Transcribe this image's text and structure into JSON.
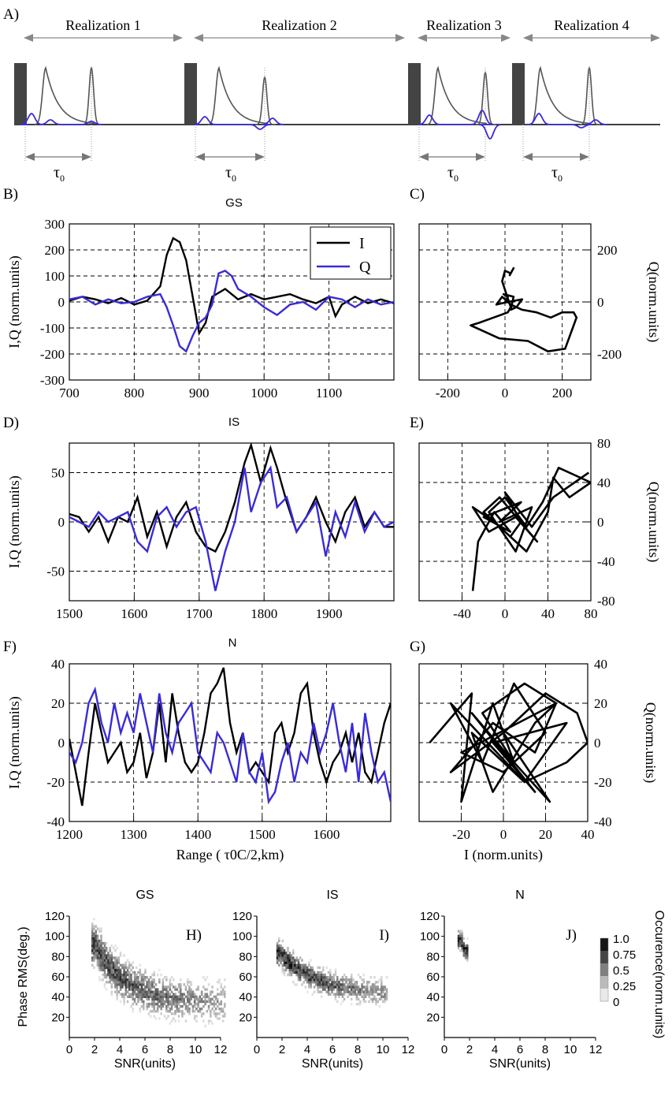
{
  "colors": {
    "I": "#000000",
    "Q": "#3a2bd6",
    "pulse": "#555555",
    "block": "#444444"
  },
  "panel_labels": {
    "A": "A)",
    "B": "B)",
    "C": "C)",
    "D": "D)",
    "E": "E)",
    "F": "F)",
    "G": "G)",
    "H": "H)",
    "I": "I)",
    "J": "J)"
  },
  "schematic": {
    "realizations": [
      "Realization 1",
      "Realization 2",
      "Realization 3",
      "Realization 4"
    ],
    "tau_label": "τ",
    "tau_sub": "0"
  },
  "chart_data": [
    {
      "id": "B",
      "type": "line",
      "title": "GS",
      "xlabel": "",
      "ylabel": "I,Q (norm.units)",
      "xlim": [
        700,
        1200
      ],
      "ylim": [
        -300,
        300
      ],
      "xticks": [
        "700",
        "800",
        "900",
        "1000",
        "1100"
      ],
      "yticks": [
        "-300",
        "-200",
        "-100",
        "0",
        "100",
        "200",
        "300"
      ],
      "legend": [
        "I",
        "Q"
      ],
      "legend_position": "top-right",
      "series": [
        {
          "name": "I",
          "x": [
            700,
            720,
            740,
            760,
            780,
            800,
            820,
            840,
            850,
            860,
            870,
            880,
            890,
            900,
            910,
            920,
            940,
            960,
            980,
            1000,
            1020,
            1040,
            1060,
            1080,
            1100,
            1110,
            1120,
            1140,
            1160,
            1180,
            1200
          ],
          "values": [
            5,
            20,
            10,
            -5,
            15,
            -10,
            5,
            60,
            180,
            245,
            230,
            160,
            20,
            -120,
            -80,
            20,
            50,
            10,
            30,
            10,
            20,
            30,
            10,
            -5,
            20,
            -55,
            -10,
            20,
            -5,
            10,
            -5
          ]
        },
        {
          "name": "Q",
          "x": [
            700,
            720,
            740,
            760,
            780,
            800,
            820,
            840,
            850,
            860,
            870,
            880,
            890,
            900,
            910,
            920,
            930,
            940,
            950,
            960,
            980,
            1000,
            1020,
            1040,
            1060,
            1080,
            1100,
            1120,
            1140,
            1160,
            1180,
            1200
          ],
          "values": [
            10,
            20,
            -10,
            10,
            -5,
            0,
            20,
            30,
            -20,
            -90,
            -170,
            -190,
            -130,
            -80,
            -60,
            -10,
            110,
            120,
            100,
            50,
            20,
            -20,
            -50,
            -10,
            0,
            -30,
            20,
            10,
            -20,
            10,
            -10,
            0
          ]
        }
      ]
    },
    {
      "id": "C",
      "type": "scatter",
      "title": "",
      "xlabel": "",
      "ylabel": "Q(norm.units)",
      "xlim": [
        -300,
        300
      ],
      "ylim": [
        -300,
        300
      ],
      "xticks": [
        "-200",
        "0",
        "200"
      ],
      "yticks": [
        "-200",
        "0",
        "200"
      ],
      "x": [
        0,
        10,
        -5,
        30,
        20,
        40,
        60,
        10,
        -30,
        -10,
        20,
        60,
        110,
        160,
        200,
        240,
        250,
        210,
        150,
        80,
        -20,
        -60,
        -120,
        -90,
        -40,
        10,
        20,
        5,
        -10,
        0,
        20,
        30,
        15
      ],
      "values": [
        0,
        20,
        30,
        20,
        -30,
        -20,
        10,
        0,
        -10,
        20,
        -10,
        -30,
        -40,
        -60,
        -40,
        -40,
        -60,
        -180,
        -190,
        -150,
        -140,
        -120,
        -90,
        -80,
        -60,
        -40,
        -20,
        30,
        80,
        120,
        110,
        130,
        100
      ]
    },
    {
      "id": "D",
      "type": "line",
      "title": "IS",
      "xlabel": "",
      "ylabel": "I,Q (norm.units)",
      "xlim": [
        1500,
        2000
      ],
      "ylim": [
        -80,
        80
      ],
      "xticks": [
        "1500",
        "1600",
        "1700",
        "1800",
        "1900"
      ],
      "yticks": [
        "-50",
        "0",
        "50"
      ],
      "legend": [],
      "legend_position": "",
      "series": [
        {
          "name": "I",
          "x": [
            1500,
            1515,
            1530,
            1545,
            1560,
            1575,
            1590,
            1605,
            1620,
            1635,
            1650,
            1665,
            1680,
            1695,
            1710,
            1725,
            1740,
            1755,
            1770,
            1780,
            1795,
            1810,
            1820,
            1835,
            1850,
            1865,
            1880,
            1895,
            1910,
            1925,
            1940,
            1955,
            1970,
            1985,
            2000
          ],
          "values": [
            8,
            5,
            -10,
            5,
            -20,
            5,
            0,
            25,
            -15,
            10,
            -25,
            5,
            20,
            -10,
            -25,
            -30,
            -10,
            20,
            60,
            78,
            40,
            75,
            55,
            20,
            -10,
            5,
            25,
            0,
            -20,
            10,
            25,
            -5,
            10,
            -5,
            -5
          ]
        },
        {
          "name": "Q",
          "x": [
            1500,
            1515,
            1530,
            1545,
            1560,
            1575,
            1590,
            1605,
            1620,
            1635,
            1650,
            1665,
            1680,
            1695,
            1710,
            1725,
            1740,
            1755,
            1770,
            1780,
            1795,
            1810,
            1820,
            1835,
            1850,
            1865,
            1880,
            1895,
            1910,
            1925,
            1940,
            1955,
            1970,
            1985,
            2000
          ],
          "values": [
            5,
            0,
            -5,
            10,
            0,
            5,
            10,
            -20,
            -30,
            5,
            15,
            -5,
            10,
            15,
            -20,
            -70,
            -30,
            0,
            55,
            10,
            40,
            55,
            15,
            25,
            -10,
            5,
            20,
            -35,
            10,
            -15,
            20,
            -10,
            10,
            -5,
            0
          ]
        }
      ]
    },
    {
      "id": "E",
      "type": "scatter",
      "title": "",
      "xlabel": "",
      "ylabel": "Q(norm.units)",
      "xlim": [
        -80,
        80
      ],
      "ylim": [
        -80,
        80
      ],
      "xticks": [
        "-40",
        "0",
        "40",
        "80"
      ],
      "yticks": [
        "80",
        "40",
        "0",
        "-40",
        "-80"
      ],
      "x": [
        -30,
        -25,
        -10,
        5,
        -20,
        15,
        -5,
        25,
        10,
        -15,
        0,
        20,
        35,
        50,
        80,
        60,
        45,
        40,
        20,
        -10,
        -30,
        -15,
        10,
        30,
        -5,
        -20,
        5,
        15,
        0,
        25,
        35,
        45,
        78
      ],
      "values": [
        -70,
        -20,
        10,
        -10,
        5,
        20,
        0,
        15,
        -30,
        10,
        25,
        -5,
        20,
        55,
        40,
        25,
        45,
        10,
        -30,
        0,
        15,
        -10,
        5,
        -20,
        25,
        10,
        -15,
        0,
        30,
        -5,
        10,
        25,
        50
      ]
    },
    {
      "id": "F",
      "type": "line",
      "title": "N",
      "xlabel": "Range ( τ0C/2,km)",
      "ylabel": "I,Q (norm.units)",
      "xlim": [
        1200,
        1700
      ],
      "ylim": [
        -40,
        40
      ],
      "xticks": [
        "1200",
        "1300",
        "1400",
        "1500",
        "1600"
      ],
      "yticks": [
        "-40",
        "-20",
        "0",
        "20",
        "40"
      ],
      "legend": [],
      "legend_position": "",
      "series": [
        {
          "name": "I",
          "x": [
            1200,
            1210,
            1220,
            1230,
            1240,
            1250,
            1260,
            1270,
            1280,
            1290,
            1300,
            1310,
            1320,
            1330,
            1340,
            1350,
            1360,
            1370,
            1380,
            1390,
            1400,
            1410,
            1420,
            1430,
            1440,
            1450,
            1460,
            1470,
            1480,
            1490,
            1500,
            1510,
            1520,
            1530,
            1540,
            1550,
            1560,
            1570,
            1580,
            1590,
            1600,
            1610,
            1620,
            1630,
            1640,
            1650,
            1660,
            1670,
            1680,
            1690,
            1700
          ],
          "values": [
            2,
            -15,
            -32,
            -5,
            20,
            5,
            -10,
            -5,
            0,
            -15,
            -10,
            5,
            -18,
            -5,
            20,
            -10,
            25,
            5,
            -10,
            -15,
            -10,
            5,
            25,
            30,
            38,
            10,
            -5,
            5,
            -15,
            -10,
            -15,
            -20,
            5,
            10,
            -5,
            5,
            25,
            30,
            5,
            -10,
            -20,
            -10,
            -5,
            5,
            -10,
            5,
            -15,
            -20,
            -5,
            10,
            20
          ]
        },
        {
          "name": "Q",
          "x": [
            1200,
            1210,
            1220,
            1230,
            1240,
            1250,
            1260,
            1270,
            1280,
            1290,
            1300,
            1310,
            1320,
            1330,
            1340,
            1350,
            1360,
            1370,
            1380,
            1390,
            1400,
            1410,
            1420,
            1430,
            1440,
            1450,
            1460,
            1470,
            1480,
            1490,
            1500,
            1510,
            1520,
            1530,
            1540,
            1550,
            1560,
            1570,
            1580,
            1590,
            1600,
            1610,
            1620,
            1630,
            1640,
            1650,
            1660,
            1670,
            1680,
            1690,
            1700
          ],
          "values": [
            -5,
            -10,
            0,
            20,
            27,
            10,
            0,
            20,
            5,
            15,
            5,
            25,
            10,
            -5,
            25,
            5,
            -5,
            10,
            15,
            20,
            -5,
            -10,
            -15,
            5,
            0,
            -10,
            -20,
            5,
            -15,
            -20,
            -5,
            -30,
            -25,
            -10,
            0,
            -20,
            -5,
            -10,
            10,
            -5,
            5,
            20,
            0,
            -15,
            10,
            -20,
            15,
            -5,
            -20,
            -15,
            -30
          ]
        }
      ]
    },
    {
      "id": "G",
      "type": "scatter",
      "title": "",
      "xlabel": "I (norm.units)",
      "ylabel": "Q(norm.units)",
      "xlim": [
        -40,
        40
      ],
      "ylim": [
        -40,
        40
      ],
      "xticks": [
        "-20",
        "0",
        "20",
        "40"
      ],
      "yticks": [
        "40",
        "20",
        "0",
        "-20",
        "-40"
      ],
      "x": [
        -35,
        -15,
        -20,
        -5,
        5,
        -10,
        10,
        25,
        15,
        -5,
        -25,
        0,
        20,
        35,
        40,
        30,
        10,
        -15,
        -5,
        15,
        25,
        -20,
        0,
        20,
        5,
        -10,
        -25,
        10,
        30,
        -5,
        15,
        -15,
        5,
        22,
        0
      ],
      "values": [
        0,
        25,
        -30,
        20,
        -10,
        15,
        30,
        20,
        -5,
        10,
        -15,
        5,
        25,
        15,
        0,
        -10,
        -20,
        5,
        -25,
        10,
        20,
        -5,
        -15,
        5,
        30,
        -10,
        20,
        -20,
        10,
        0,
        -25,
        15,
        -10,
        -30,
        5
      ]
    },
    {
      "id": "H",
      "type": "heatmap",
      "title": "GS",
      "xlabel": "SNR(units)",
      "ylabel": "Phase RMS(deg.)",
      "xlim": [
        0,
        12
      ],
      "ylim": [
        0,
        120
      ],
      "xticks": [
        "0",
        "2",
        "4",
        "6",
        "8",
        "10",
        "12"
      ],
      "yticks": [
        "20",
        "40",
        "60",
        "80",
        "100",
        "120"
      ],
      "curve_snr": [
        2,
        3,
        4,
        5,
        6,
        7,
        8,
        9,
        10,
        11,
        12
      ],
      "curve_phase": [
        90,
        70,
        58,
        50,
        45,
        40,
        38,
        36,
        35,
        34,
        34
      ],
      "spread_deg": 22,
      "peak_density": 0.9
    },
    {
      "id": "I",
      "type": "heatmap",
      "title": "IS",
      "xlabel": "SNR(units)",
      "ylabel": "",
      "xlim": [
        0,
        12
      ],
      "ylim": [
        0,
        120
      ],
      "xticks": [
        "0",
        "2",
        "4",
        "6",
        "8",
        "10",
        "12"
      ],
      "yticks": [
        "20",
        "40",
        "60",
        "80",
        "100",
        "120"
      ],
      "curve_snr": [
        1.8,
        2.2,
        2.6,
        3,
        3.5,
        4,
        5,
        6,
        7,
        8,
        9,
        10
      ],
      "curve_phase": [
        82,
        76,
        72,
        68,
        64,
        60,
        55,
        50,
        48,
        46,
        45,
        44
      ],
      "spread_deg": 14,
      "peak_density": 1.0
    },
    {
      "id": "J",
      "type": "heatmap",
      "title": "N",
      "xlabel": "SNR(units)",
      "ylabel": "",
      "xlim": [
        0,
        12
      ],
      "ylim": [
        0,
        120
      ],
      "xticks": [
        "0",
        "2",
        "4",
        "6",
        "8",
        "10",
        "12"
      ],
      "yticks": [
        "20",
        "40",
        "60",
        "80",
        "100",
        "120"
      ],
      "curve_snr": [
        1.3,
        1.4,
        1.5
      ],
      "curve_phase": [
        95,
        90,
        85
      ],
      "spread_deg": 10,
      "peak_density": 1.0
    }
  ],
  "colorbar": {
    "label": "Occurence(norm.units)",
    "ticks": [
      "1.0",
      "0.75",
      "0.5",
      "0.25",
      "0"
    ]
  }
}
